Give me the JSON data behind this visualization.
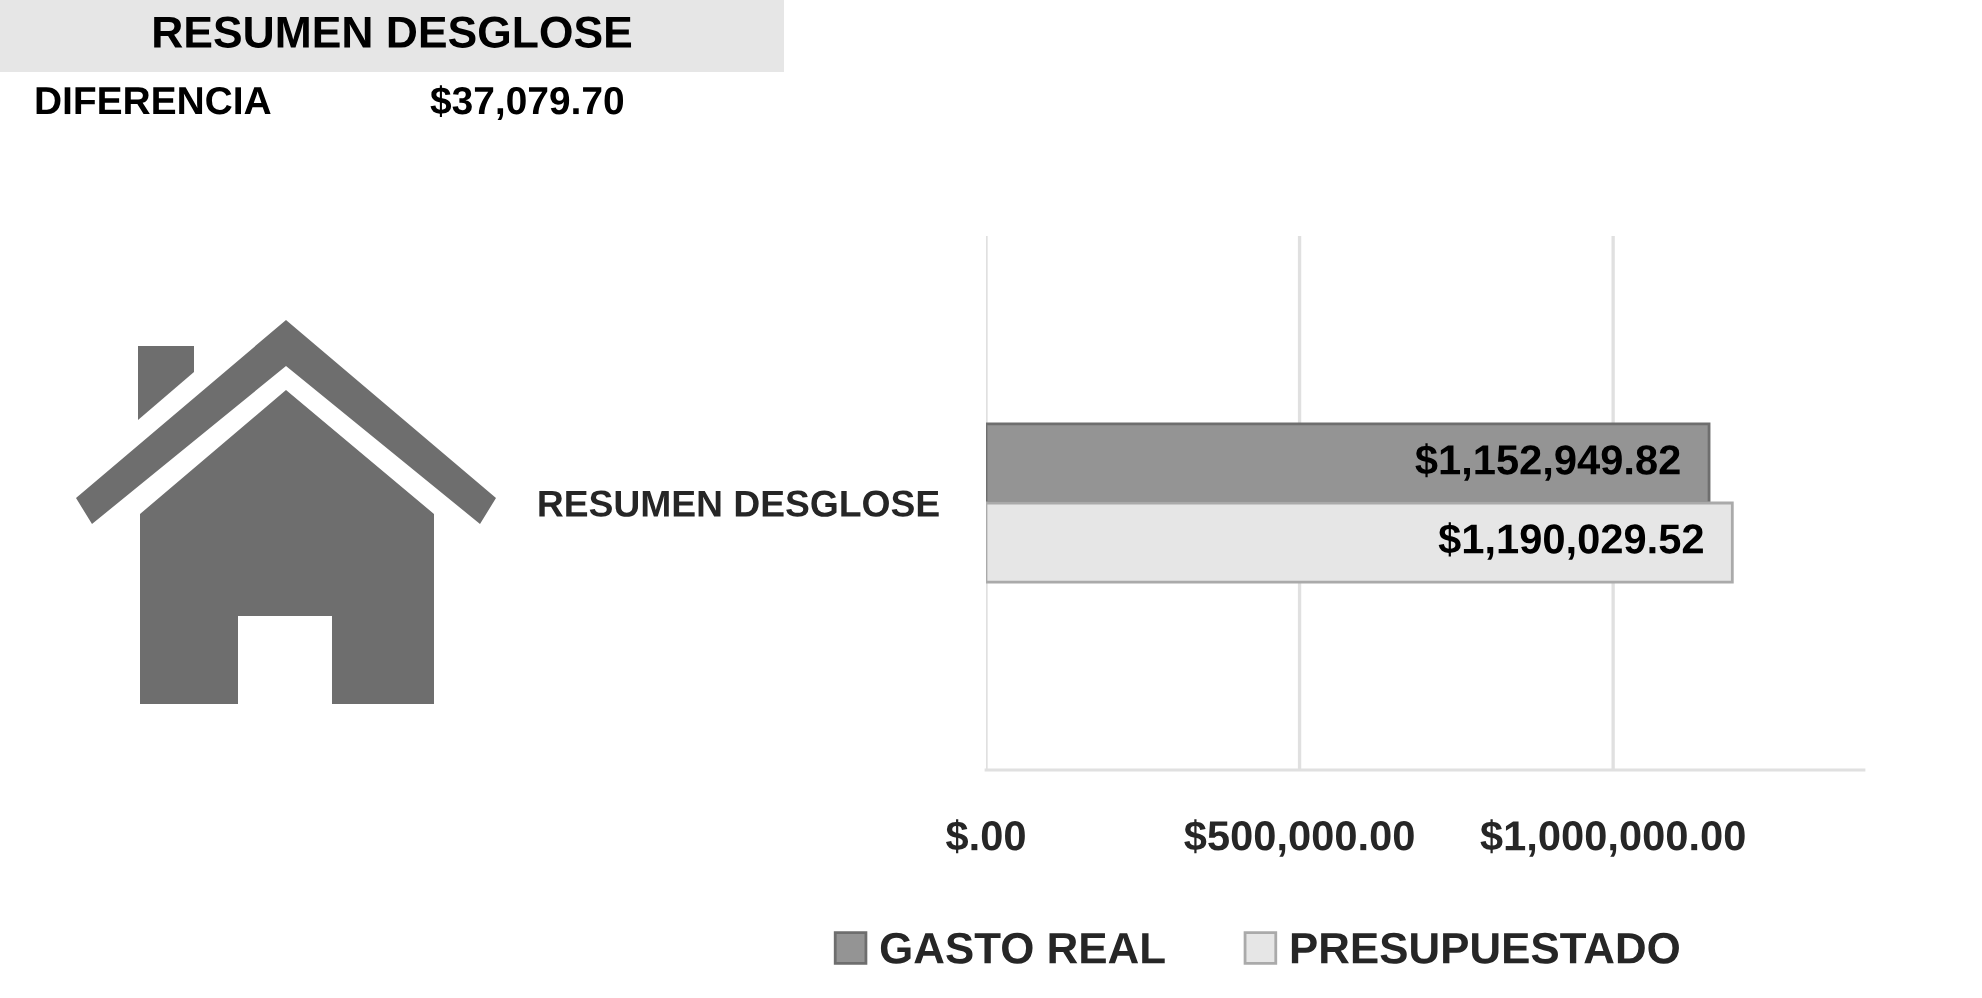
{
  "chart_data": {
    "type": "bar",
    "orientation": "horizontal",
    "title": "RESUMEN DESGLOSE",
    "annotations": [
      "DIFERENCIA",
      "$37,079.70"
    ],
    "categories": [
      "RESUMEN DESGLOSE"
    ],
    "series": [
      {
        "name": "GASTO REAL",
        "color": "#949494",
        "values": [
          1152949.82
        ],
        "value_labels": [
          "$1,152,949.82"
        ]
      },
      {
        "name": "PRESUPUESTADO",
        "color": "#e6e6e6",
        "values": [
          1190029.52
        ],
        "value_labels": [
          "$1,190,029.52"
        ]
      }
    ],
    "xlim": [
      0,
      1400000
    ],
    "xticks": [
      {
        "value": 0,
        "label": "$.00"
      },
      {
        "value": 500000,
        "label": "$500,000.00"
      },
      {
        "value": 1000000,
        "label": "$1,000,000.00"
      }
    ],
    "grid": "x",
    "legend": "bottom"
  }
}
